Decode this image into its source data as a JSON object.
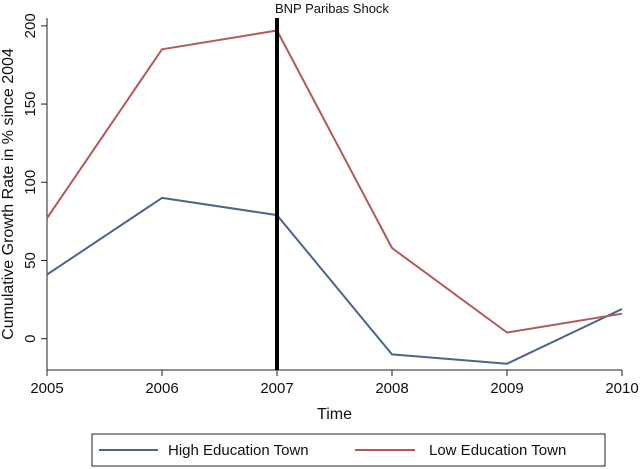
{
  "chart_data": {
    "type": "line",
    "title": "",
    "xlabel": "Time",
    "ylabel": "Cumulative Growth Rate in % since 2004",
    "x": [
      2005,
      2006,
      2007,
      2008,
      2009,
      2010
    ],
    "xlim": [
      2005,
      2010
    ],
    "ylim": [
      -20,
      205
    ],
    "yticks": [
      0,
      50,
      100,
      150,
      200
    ],
    "grid": false,
    "legend_position": "bottom",
    "series": [
      {
        "name": "High Education Town",
        "color": "#4a6587",
        "values": [
          41,
          90,
          79,
          -10,
          -16,
          19
        ]
      },
      {
        "name": "Low Education Town",
        "color": "#b05a5a",
        "values": [
          77,
          185,
          197,
          58,
          4,
          16
        ]
      }
    ],
    "annotations": [
      {
        "type": "vline",
        "x": 2007,
        "label": "BNP Paribas Shock",
        "color": "#000000"
      }
    ]
  }
}
